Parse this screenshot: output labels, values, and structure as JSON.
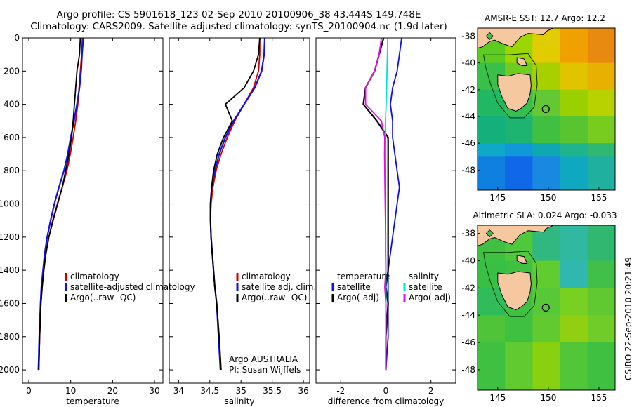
{
  "header": {
    "title_line1": "Argo profile: CS 5901618_123 02-Sep-2010 20100906_38 43.444S 149.748E",
    "title_line2": "Climatology: CARS2009. Satellite-adjusted climatology: synTS_20100904.nc (1.9d later)"
  },
  "footer": {
    "credit": "CSIRO 22-Sep-2010 20:21:49"
  },
  "colors": {
    "climatology": "#cc0000",
    "satellite": "#1010e0",
    "argo": "#000000",
    "salinity_satellite": "#00e0e0",
    "salinity_argo": "#e010e0",
    "land": "#f5c8a0"
  },
  "chart_data": [
    {
      "type": "line",
      "id": "temperature",
      "xlabel": "temperature",
      "ylabel": "",
      "xlim": [
        -1.5,
        32
      ],
      "ylim": [
        2080,
        0
      ],
      "xticks": [
        0,
        10,
        20,
        30
      ],
      "yticks": [
        0,
        200,
        400,
        600,
        800,
        1000,
        1200,
        1400,
        1600,
        1800,
        2000
      ],
      "legend_position": "lower-right",
      "series": [
        {
          "name": "climatology",
          "color": "#cc0000",
          "x": [
            12.8,
            12.6,
            12.3,
            12.0,
            11.7,
            11.2,
            10.6,
            9.9,
            9.1,
            8.0,
            6.8,
            5.7,
            4.8,
            4.1,
            3.6,
            3.2,
            2.9,
            2.6,
            2.4
          ],
          "y": [
            0,
            100,
            200,
            300,
            400,
            500,
            600,
            700,
            800,
            900,
            1000,
            1100,
            1200,
            1300,
            1400,
            1500,
            1600,
            1800,
            2000
          ]
        },
        {
          "name": "satellite-adjusted climatology",
          "color": "#1010e0",
          "x": [
            13.0,
            12.7,
            12.5,
            12.1,
            11.5,
            10.8,
            10.0,
            9.3,
            8.4,
            7.2,
            6.1,
            5.2,
            4.4,
            3.8,
            3.4,
            3.0,
            2.8,
            2.5,
            2.3
          ],
          "y": [
            0,
            100,
            200,
            300,
            400,
            500,
            600,
            700,
            800,
            900,
            1000,
            1100,
            1200,
            1300,
            1400,
            1500,
            1600,
            1800,
            2000
          ]
        },
        {
          "name": "Argo(..raw -QC)",
          "color": "#000000",
          "x": [
            12.3,
            12.1,
            11.5,
            11.2,
            10.9,
            10.6,
            10.2,
            9.6,
            8.8,
            8.0,
            6.9,
            5.8,
            4.8,
            4.1,
            3.6,
            3.2,
            2.9,
            2.6,
            2.4
          ],
          "y": [
            0,
            100,
            200,
            300,
            400,
            500,
            600,
            700,
            800,
            900,
            1000,
            1100,
            1200,
            1300,
            1400,
            1500,
            1600,
            1800,
            2000
          ]
        }
      ]
    },
    {
      "type": "line",
      "id": "salinity",
      "xlabel": "salinity",
      "ylabel": "",
      "xlim": [
        33.85,
        36.1
      ],
      "ylim": [
        2080,
        0
      ],
      "xticks": [
        34,
        34.5,
        35,
        35.5,
        36
      ],
      "xticklabels": [
        "34",
        "34.5",
        "35",
        "35.5",
        "36"
      ],
      "legend_position": "lower-right",
      "annotations": [
        "Argo AUSTRALIA",
        "PI: Susan Wijffels"
      ],
      "series": [
        {
          "name": "climatology",
          "color": "#cc0000",
          "x": [
            35.3,
            35.3,
            35.28,
            35.2,
            35.05,
            34.9,
            34.78,
            34.68,
            34.6,
            34.55,
            34.52,
            34.51,
            34.52,
            34.54,
            34.56,
            34.58,
            34.61,
            34.65,
            34.68
          ],
          "y": [
            0,
            100,
            200,
            300,
            400,
            500,
            600,
            700,
            800,
            900,
            1000,
            1100,
            1200,
            1300,
            1400,
            1500,
            1600,
            1800,
            2000
          ]
        },
        {
          "name": "satellite adj. clim.",
          "color": "#1010e0",
          "x": [
            35.38,
            35.37,
            35.33,
            35.22,
            35.05,
            34.88,
            34.75,
            34.65,
            34.58,
            34.53,
            34.51,
            34.51,
            34.52,
            34.54,
            34.56,
            34.58,
            34.61,
            34.64,
            34.67
          ],
          "y": [
            0,
            100,
            200,
            300,
            400,
            500,
            600,
            700,
            800,
            900,
            1000,
            1100,
            1200,
            1300,
            1400,
            1500,
            1600,
            1800,
            2000
          ]
        },
        {
          "name": "Argo(..raw -QC)",
          "color": "#000000",
          "x": [
            35.3,
            35.28,
            35.2,
            35.05,
            34.75,
            34.86,
            34.72,
            34.62,
            34.56,
            34.53,
            34.51,
            34.51,
            34.52,
            34.54,
            34.56,
            34.58,
            34.61,
            34.65,
            34.68
          ],
          "y": [
            0,
            100,
            200,
            300,
            400,
            500,
            600,
            700,
            800,
            900,
            1000,
            1100,
            1200,
            1300,
            1400,
            1500,
            1600,
            1800,
            2000
          ]
        }
      ]
    },
    {
      "type": "line",
      "id": "difference",
      "xlabel": "difference from climatology",
      "ylabel": "",
      "xlim": [
        -3.1,
        3.1
      ],
      "ylim": [
        2080,
        0
      ],
      "xticks": [
        -2,
        0,
        2
      ],
      "legend_position": "lower-center",
      "legend_groups": [
        {
          "title": "temperature",
          "entries": [
            {
              "name": "satellite",
              "color": "#1010e0"
            },
            {
              "name": "Argo(-adj)",
              "color": "#000000"
            }
          ]
        },
        {
          "title": "salinity",
          "entries": [
            {
              "name": "satellite",
              "color": "#00e0e0"
            },
            {
              "name": "Argo(-adj)",
              "color": "#e010e0"
            }
          ]
        }
      ],
      "series": [
        {
          "name": "temperature satellite",
          "color": "#1010e0",
          "x": [
            0.7,
            0.6,
            0.5,
            0.3,
            0.2,
            0.3,
            0.3,
            0.4,
            0.5,
            0.6,
            0.5,
            0.4,
            0.3,
            0.2,
            0.1,
            0.1,
            0.1,
            0.1,
            0.0
          ],
          "y": [
            0,
            100,
            200,
            300,
            400,
            500,
            600,
            700,
            800,
            900,
            1000,
            1100,
            1200,
            1300,
            1400,
            1500,
            1600,
            1800,
            2000
          ]
        },
        {
          "name": "temperature Argo(-adj)",
          "color": "#000000",
          "x": [
            -0.1,
            -0.3,
            -0.5,
            -0.9,
            -1.0,
            -0.4,
            0.1,
            0.1,
            0.1,
            0.1,
            0.1,
            0.1,
            0.1,
            0.1,
            0.1,
            0.0,
            0.1,
            0.0,
            0.0
          ],
          "y": [
            0,
            100,
            200,
            300,
            400,
            500,
            600,
            700,
            800,
            900,
            1000,
            1100,
            1200,
            1300,
            1400,
            1500,
            1600,
            1800,
            2000
          ]
        },
        {
          "name": "salinity satellite",
          "color": "#00e0e0",
          "x": [
            0.08,
            0.07,
            0.05,
            0.03,
            0.01,
            -0.02,
            -0.03,
            -0.03,
            -0.02,
            -0.02,
            -0.02,
            -0.01,
            -0.01,
            -0.01,
            0.0,
            0.0,
            0.0,
            0.0,
            -0.01
          ],
          "y": [
            0,
            100,
            200,
            300,
            400,
            500,
            600,
            700,
            800,
            900,
            1000,
            1100,
            1200,
            1300,
            1400,
            1500,
            1600,
            1800,
            2000
          ]
        },
        {
          "name": "salinity Argo(-adj)",
          "color": "#e010e0",
          "x": [
            -0.2,
            -0.3,
            -0.5,
            -0.9,
            -0.9,
            -0.2,
            -0.05,
            -0.06,
            -0.05,
            -0.04,
            -0.03,
            -0.02,
            -0.01,
            -0.01,
            0.0,
            -0.05,
            0.0,
            0.0,
            0.0
          ],
          "y": [
            0,
            100,
            200,
            300,
            400,
            500,
            600,
            700,
            800,
            900,
            1000,
            1100,
            1200,
            1300,
            1400,
            1500,
            1600,
            1800,
            2000
          ]
        }
      ]
    },
    {
      "type": "heatmap",
      "id": "sst-map",
      "title": "AMSR-E SST: 12.7 Argo: 12.2",
      "xlim": [
        143,
        156.6
      ],
      "ylim": [
        -49.5,
        -37.4
      ],
      "xticks": [
        145,
        150,
        155
      ],
      "yticks": [
        -38,
        -40,
        -42,
        -44,
        -46,
        -48
      ],
      "argo_position": [
        149.748,
        -43.444
      ],
      "colors": {
        "bands": [
          {
            "lat": [
              -38,
              -40
            ],
            "colors": [
              "#5ecb20",
              "#9cd600",
              "#e0cc00",
              "#f0a000",
              "#e88a10"
            ]
          },
          {
            "lat": [
              -40,
              -42
            ],
            "colors": [
              "#38c04a",
              "#70cc20",
              "#a8d000",
              "#e0c400",
              "#e8b000"
            ]
          },
          {
            "lat": [
              -42,
              -44
            ],
            "colors": [
              "#20b860",
              "#34c04c",
              "#64c834",
              "#9ad000",
              "#b8d200"
            ]
          },
          {
            "lat": [
              -44,
              -46
            ],
            "colors": [
              "#14b07c",
              "#1cb470",
              "#40c040",
              "#58c430",
              "#78cc20"
            ]
          },
          {
            "lat": [
              -46,
              -47
            ],
            "colors": [
              "#10a8c8",
              "#1098d8",
              "#10a8b0",
              "#20b48c",
              "#30b870"
            ]
          },
          {
            "lat": [
              -47,
              -49.5
            ],
            "colors": [
              "#1080e0",
              "#1068e8",
              "#1888e0",
              "#10a8c0",
              "#20b0a0"
            ]
          }
        ]
      }
    },
    {
      "type": "heatmap",
      "id": "sla-map",
      "title": "Altimetric SLA: 0.024 Argo: -0.033",
      "xlim": [
        143,
        156.6
      ],
      "ylim": [
        -49.5,
        -37.4
      ],
      "xticks": [
        145,
        150,
        155
      ],
      "yticks": [
        -38,
        -40,
        -42,
        -44,
        -46,
        -48
      ],
      "argo_position": [
        149.748,
        -43.444
      ],
      "colors": {
        "bands": [
          {
            "lat": [
              -38,
              -40
            ],
            "colors": [
              "#40c040",
              "#50c83c",
              "#30b880",
              "#30b8a0",
              "#30b870"
            ]
          },
          {
            "lat": [
              -40,
              -42
            ],
            "colors": [
              "#38c044",
              "#40c040",
              "#60cc30",
              "#30b8b0",
              "#40c048"
            ]
          },
          {
            "lat": [
              -42,
              -44
            ],
            "colors": [
              "#30bc58",
              "#40c040",
              "#58c838",
              "#78d020",
              "#60c830"
            ]
          },
          {
            "lat": [
              -44,
              -46
            ],
            "colors": [
              "#50c438",
              "#40c040",
              "#60ca30",
              "#90d010",
              "#70cc28"
            ]
          },
          {
            "lat": [
              -46,
              -49.5
            ],
            "colors": [
              "#40c040",
              "#60ca30",
              "#88d010",
              "#50c638",
              "#40c040"
            ]
          }
        ]
      }
    }
  ]
}
